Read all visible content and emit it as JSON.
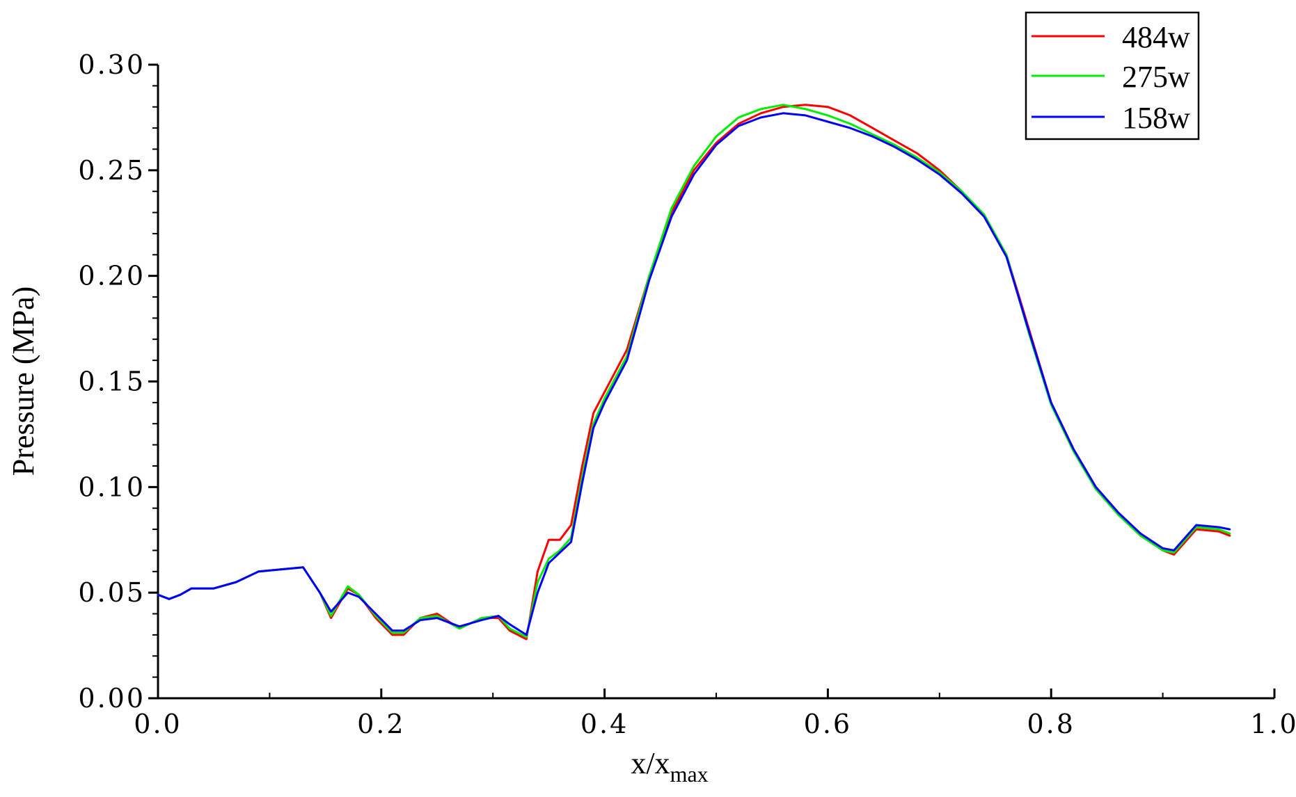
{
  "chart_data": {
    "type": "line",
    "xlabel": "x/x",
    "xlabel_subscript": "max",
    "ylabel": "Pressure (MPa)",
    "xlim": [
      0.0,
      1.0
    ],
    "ylim": [
      0.0,
      0.3
    ],
    "xticks": [
      "0.0",
      "0.2",
      "0.4",
      "0.6",
      "0.8",
      "1.0"
    ],
    "yticks": [
      "0.00",
      "0.05",
      "0.10",
      "0.15",
      "0.20",
      "0.25",
      "0.30"
    ],
    "legend_position": "top-right",
    "grid": false,
    "x": [
      0.0,
      0.01,
      0.02,
      0.03,
      0.05,
      0.07,
      0.09,
      0.11,
      0.13,
      0.145,
      0.155,
      0.17,
      0.18,
      0.195,
      0.21,
      0.22,
      0.235,
      0.25,
      0.27,
      0.29,
      0.305,
      0.315,
      0.33,
      0.34,
      0.35,
      0.36,
      0.37,
      0.38,
      0.39,
      0.4,
      0.42,
      0.44,
      0.46,
      0.48,
      0.5,
      0.52,
      0.54,
      0.56,
      0.58,
      0.6,
      0.62,
      0.64,
      0.66,
      0.68,
      0.7,
      0.72,
      0.74,
      0.76,
      0.78,
      0.8,
      0.82,
      0.84,
      0.86,
      0.88,
      0.9,
      0.91,
      0.93,
      0.95,
      0.96
    ],
    "series": [
      {
        "name": "484w",
        "color": "#ff0000",
        "values": [
          0.049,
          0.047,
          0.049,
          0.052,
          0.052,
          0.055,
          0.06,
          0.061,
          0.062,
          0.05,
          0.038,
          0.052,
          0.049,
          0.038,
          0.03,
          0.03,
          0.038,
          0.04,
          0.033,
          0.038,
          0.038,
          0.032,
          0.028,
          0.06,
          0.075,
          0.075,
          0.082,
          0.11,
          0.135,
          0.145,
          0.165,
          0.2,
          0.23,
          0.25,
          0.263,
          0.272,
          0.277,
          0.28,
          0.281,
          0.28,
          0.276,
          0.27,
          0.264,
          0.258,
          0.25,
          0.24,
          0.228,
          0.21,
          0.175,
          0.14,
          0.118,
          0.1,
          0.088,
          0.078,
          0.07,
          0.068,
          0.08,
          0.079,
          0.077
        ]
      },
      {
        "name": "275w",
        "color": "#00ee00",
        "values": [
          0.049,
          0.047,
          0.049,
          0.052,
          0.052,
          0.055,
          0.06,
          0.061,
          0.062,
          0.05,
          0.039,
          0.053,
          0.049,
          0.039,
          0.031,
          0.031,
          0.038,
          0.039,
          0.033,
          0.038,
          0.039,
          0.033,
          0.029,
          0.055,
          0.066,
          0.07,
          0.076,
          0.105,
          0.13,
          0.142,
          0.162,
          0.2,
          0.232,
          0.252,
          0.266,
          0.275,
          0.279,
          0.281,
          0.279,
          0.276,
          0.272,
          0.267,
          0.262,
          0.256,
          0.249,
          0.24,
          0.229,
          0.21,
          0.173,
          0.139,
          0.117,
          0.099,
          0.087,
          0.077,
          0.07,
          0.069,
          0.081,
          0.08,
          0.078
        ]
      },
      {
        "name": "158w",
        "color": "#0000ff",
        "values": [
          0.049,
          0.047,
          0.049,
          0.052,
          0.052,
          0.055,
          0.06,
          0.061,
          0.062,
          0.05,
          0.041,
          0.05,
          0.048,
          0.04,
          0.032,
          0.032,
          0.037,
          0.038,
          0.034,
          0.037,
          0.039,
          0.035,
          0.03,
          0.05,
          0.064,
          0.069,
          0.074,
          0.102,
          0.128,
          0.14,
          0.16,
          0.198,
          0.228,
          0.248,
          0.262,
          0.271,
          0.275,
          0.277,
          0.276,
          0.273,
          0.27,
          0.266,
          0.261,
          0.255,
          0.248,
          0.239,
          0.228,
          0.209,
          0.174,
          0.14,
          0.118,
          0.1,
          0.088,
          0.078,
          0.071,
          0.07,
          0.082,
          0.081,
          0.08
        ]
      }
    ]
  }
}
